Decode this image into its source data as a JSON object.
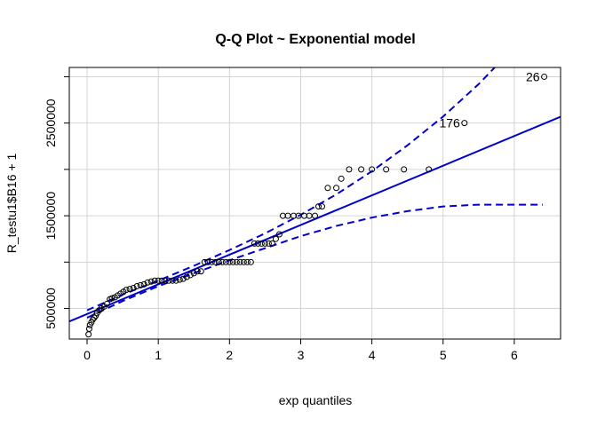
{
  "chart_data": {
    "type": "scatter",
    "title": "Q-Q Plot ~ Exponential model",
    "xlabel": "exp quantiles",
    "ylabel": "R_testu1$B16 + 1",
    "xlim": [
      -0.25,
      6.65
    ],
    "ylim": [
      170000,
      3100000
    ],
    "x_ticks": [
      0,
      1,
      2,
      3,
      4,
      5,
      6
    ],
    "y_ticks": [
      500000,
      1000000,
      1500000,
      2000000,
      2500000,
      3000000
    ],
    "y_tick_labels": [
      "500000",
      "",
      "1500000",
      "",
      "2500000",
      ""
    ],
    "grid": true,
    "colors": {
      "points": "#000000",
      "fit_line": "#0000CD",
      "band": "#0000CD",
      "grid": "#d3d3d3"
    },
    "points": [
      [
        0.02,
        220000
      ],
      [
        0.03,
        280000
      ],
      [
        0.04,
        320000
      ],
      [
        0.06,
        350000
      ],
      [
        0.08,
        380000
      ],
      [
        0.1,
        400000
      ],
      [
        0.12,
        420000
      ],
      [
        0.14,
        450000
      ],
      [
        0.17,
        480000
      ],
      [
        0.2,
        500000
      ],
      [
        0.24,
        520000
      ],
      [
        0.28,
        550000
      ],
      [
        0.32,
        600000
      ],
      [
        0.35,
        610000
      ],
      [
        0.39,
        620000
      ],
      [
        0.43,
        640000
      ],
      [
        0.47,
        660000
      ],
      [
        0.51,
        680000
      ],
      [
        0.55,
        700000
      ],
      [
        0.6,
        710000
      ],
      [
        0.65,
        720000
      ],
      [
        0.7,
        740000
      ],
      [
        0.75,
        750000
      ],
      [
        0.8,
        760000
      ],
      [
        0.85,
        780000
      ],
      [
        0.9,
        790000
      ],
      [
        0.95,
        800000
      ],
      [
        1.0,
        800000
      ],
      [
        1.05,
        800000
      ],
      [
        1.1,
        800000
      ],
      [
        1.15,
        800000
      ],
      [
        1.2,
        800000
      ],
      [
        1.25,
        800000
      ],
      [
        1.3,
        810000
      ],
      [
        1.35,
        820000
      ],
      [
        1.4,
        840000
      ],
      [
        1.45,
        860000
      ],
      [
        1.5,
        880000
      ],
      [
        1.55,
        900000
      ],
      [
        1.6,
        900000
      ],
      [
        1.65,
        1000000
      ],
      [
        1.7,
        1000000
      ],
      [
        1.75,
        1000000
      ],
      [
        1.8,
        1000000
      ],
      [
        1.85,
        1000000
      ],
      [
        1.9,
        1000000
      ],
      [
        1.95,
        1000000
      ],
      [
        2.0,
        1000000
      ],
      [
        2.05,
        1000000
      ],
      [
        2.1,
        1000000
      ],
      [
        2.15,
        1000000
      ],
      [
        2.2,
        1000000
      ],
      [
        2.25,
        1000000
      ],
      [
        2.3,
        1000000
      ],
      [
        2.35,
        1200000
      ],
      [
        2.4,
        1200000
      ],
      [
        2.45,
        1200000
      ],
      [
        2.5,
        1200000
      ],
      [
        2.55,
        1200000
      ],
      [
        2.6,
        1200000
      ],
      [
        2.65,
        1250000
      ],
      [
        2.7,
        1300000
      ],
      [
        2.75,
        1500000
      ],
      [
        2.82,
        1500000
      ],
      [
        2.9,
        1500000
      ],
      [
        2.97,
        1500000
      ],
      [
        3.05,
        1500000
      ],
      [
        3.12,
        1500000
      ],
      [
        3.2,
        1500000
      ],
      [
        3.25,
        1600000
      ],
      [
        3.3,
        1600000
      ],
      [
        3.38,
        1800000
      ],
      [
        3.5,
        1800000
      ],
      [
        3.57,
        1900000
      ],
      [
        3.68,
        2000000
      ],
      [
        3.85,
        2000000
      ],
      [
        4.0,
        2000000
      ],
      [
        4.2,
        2000000
      ],
      [
        4.45,
        2000000
      ],
      [
        4.8,
        2000000
      ],
      [
        5.3,
        2500000
      ],
      [
        6.42,
        3000000
      ]
    ],
    "labeled_points": [
      {
        "label": "176",
        "x": 5.3,
        "y": 2500000
      },
      {
        "label": "26",
        "x": 6.42,
        "y": 3000000
      }
    ],
    "fit_line": {
      "intercept": 440000,
      "slope": 320000
    },
    "confidence_band": {
      "upper": [
        [
          0,
          480000
        ],
        [
          0.5,
          650000
        ],
        [
          1,
          800000
        ],
        [
          1.5,
          960000
        ],
        [
          2,
          1130000
        ],
        [
          2.5,
          1310000
        ],
        [
          3,
          1510000
        ],
        [
          3.5,
          1730000
        ],
        [
          4,
          1980000
        ],
        [
          4.5,
          2260000
        ],
        [
          5,
          2570000
        ],
        [
          5.5,
          2920000
        ],
        [
          6.0,
          3320000
        ]
      ],
      "lower": [
        [
          0,
          400000
        ],
        [
          0.5,
          580000
        ],
        [
          1,
          740000
        ],
        [
          1.5,
          880000
        ],
        [
          2,
          1020000
        ],
        [
          2.5,
          1150000
        ],
        [
          3,
          1280000
        ],
        [
          3.5,
          1390000
        ],
        [
          4,
          1480000
        ],
        [
          4.5,
          1550000
        ],
        [
          5,
          1600000
        ],
        [
          5.5,
          1620000
        ],
        [
          6.0,
          1620000
        ],
        [
          6.4,
          1620000
        ]
      ]
    }
  }
}
